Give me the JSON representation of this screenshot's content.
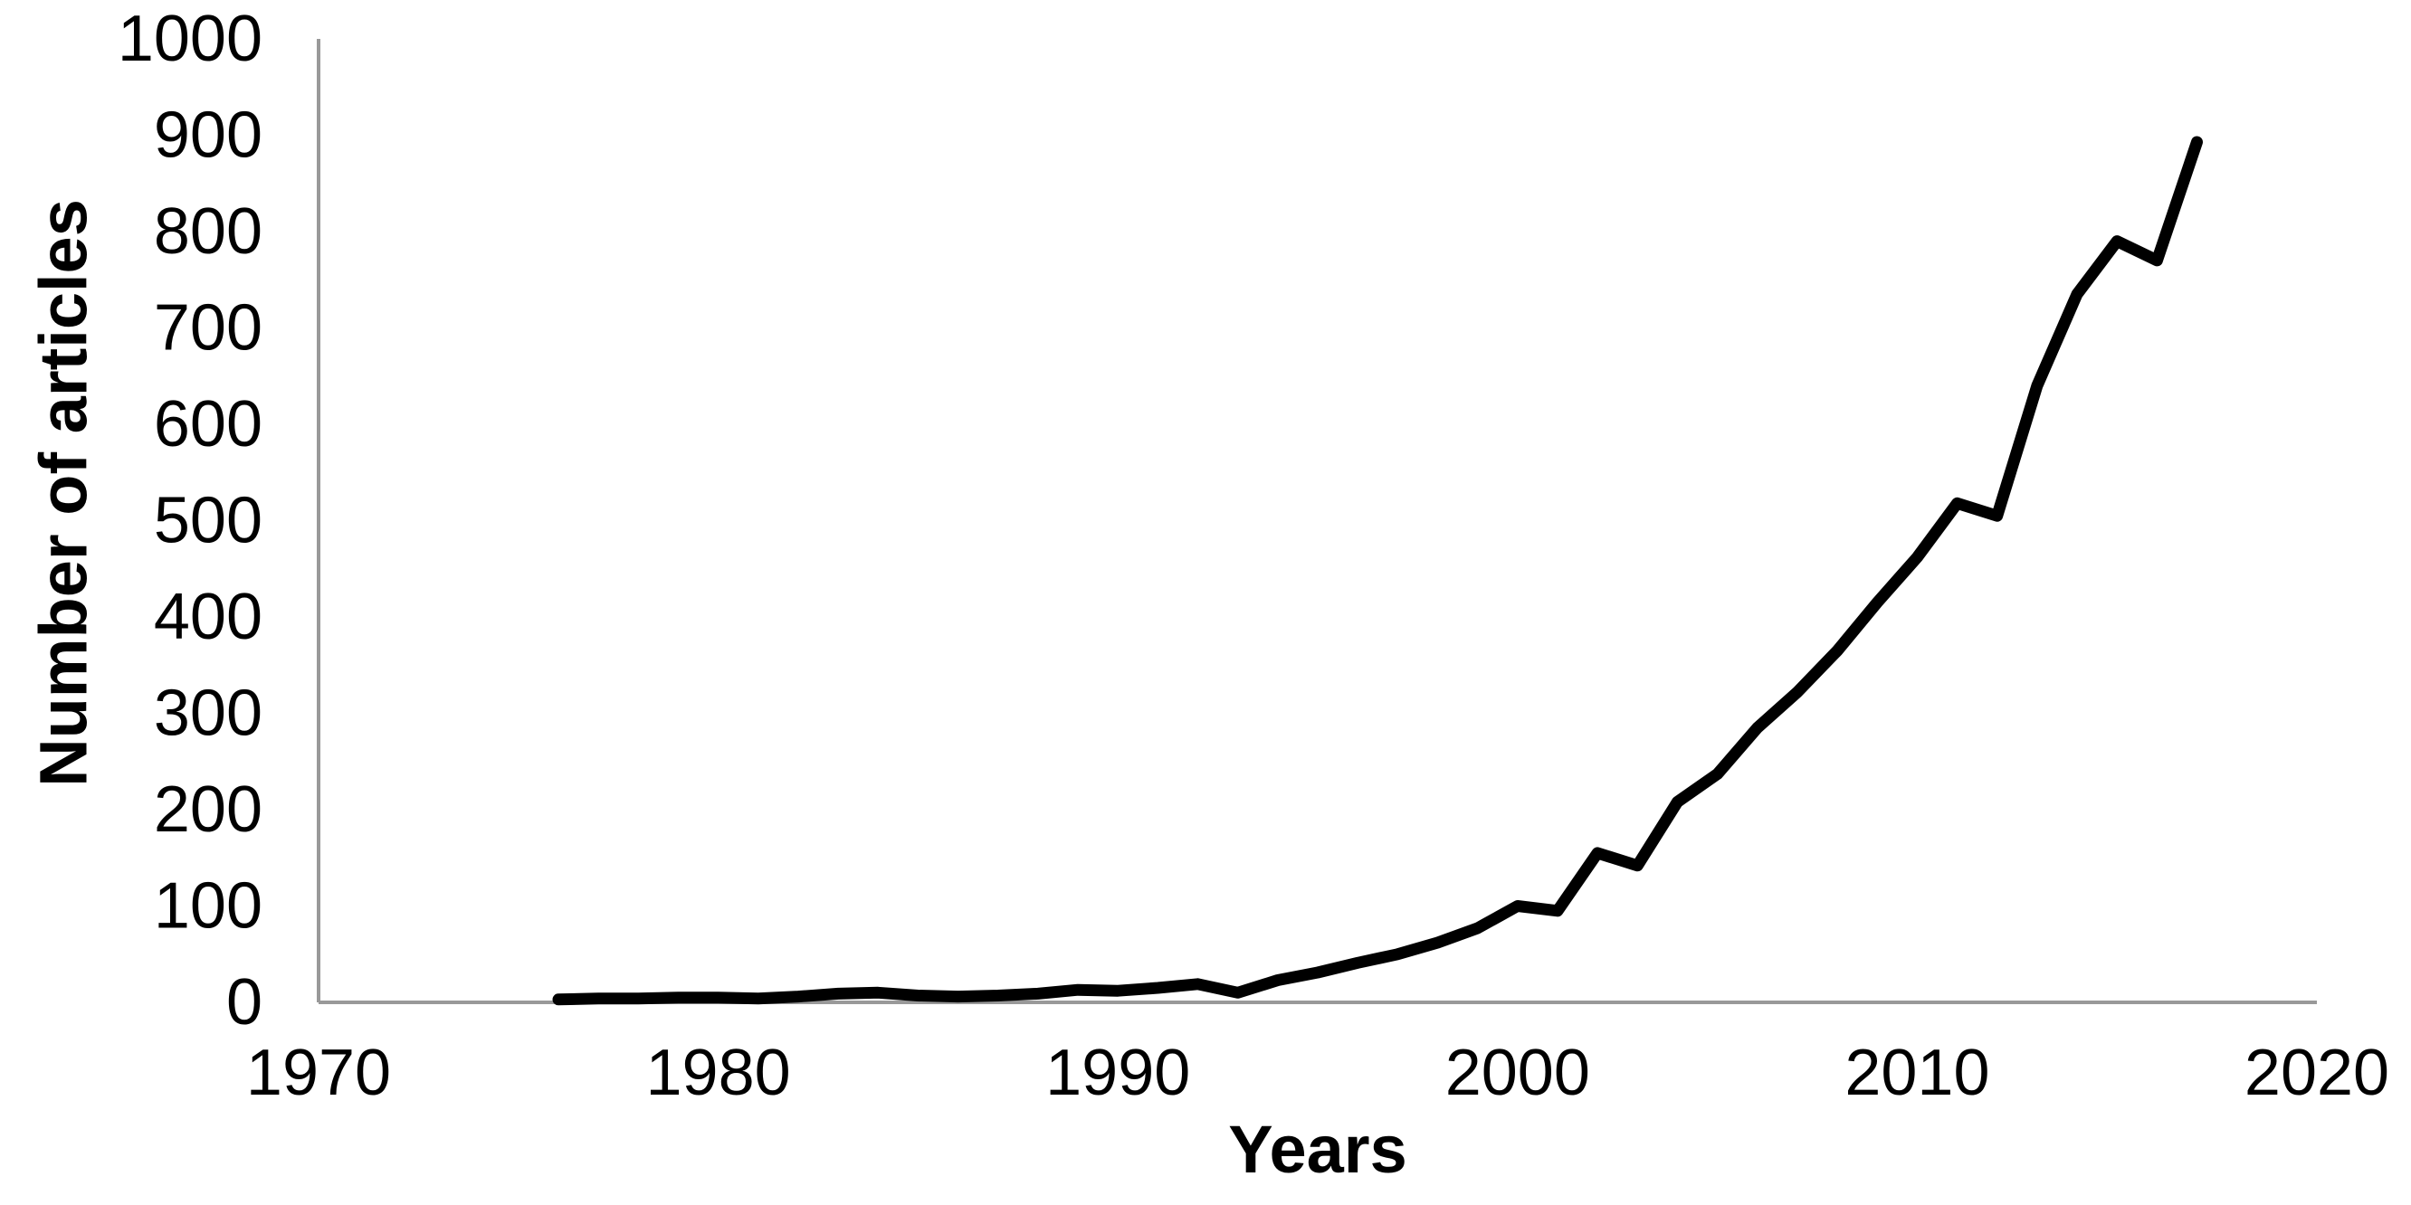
{
  "figure": {
    "background_color": "#ffffff",
    "text_color": "#000000"
  },
  "chart_data": {
    "type": "line",
    "title": "",
    "xlabel": "Years",
    "ylabel": "Number of articles",
    "xlim": [
      1970,
      2020
    ],
    "ylim": [
      0,
      1000
    ],
    "x_ticks": [
      1970,
      1980,
      1990,
      2000,
      2010,
      2020
    ],
    "y_ticks": [
      0,
      100,
      200,
      300,
      400,
      500,
      600,
      700,
      800,
      900,
      1000
    ],
    "grid": false,
    "legend_position": "none",
    "axis_color": "#999999",
    "series": [
      {
        "name": "Number of articles",
        "color": "#000000",
        "x": [
          1976,
          1977,
          1978,
          1979,
          1980,
          1981,
          1982,
          1983,
          1984,
          1985,
          1986,
          1987,
          1988,
          1989,
          1990,
          1991,
          1992,
          1993,
          1994,
          1995,
          1996,
          1997,
          1998,
          1999,
          2000,
          2001,
          2002,
          2003,
          2004,
          2005,
          2006,
          2007,
          2008,
          2009,
          2010,
          2011,
          2012,
          2013,
          2014,
          2015,
          2016,
          2017
        ],
        "y": [
          3,
          4,
          4,
          5,
          5,
          4,
          6,
          9,
          10,
          7,
          6,
          7,
          9,
          13,
          12,
          15,
          19,
          10,
          23,
          31,
          41,
          50,
          62,
          77,
          100,
          95,
          155,
          142,
          208,
          237,
          285,
          322,
          365,
          415,
          462,
          518,
          505,
          640,
          735,
          790,
          770,
          893
        ]
      }
    ]
  }
}
